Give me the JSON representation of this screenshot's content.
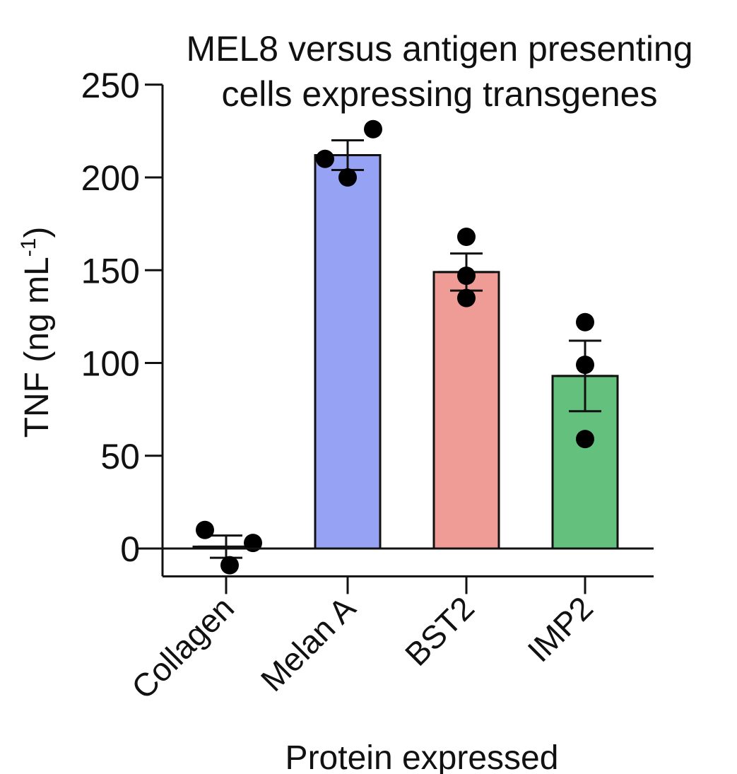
{
  "chart_data": {
    "type": "bar",
    "title": [
      "MEL8 versus antigen presenting",
      "cells expressing transgenes"
    ],
    "xlabel": "Protein expressed",
    "ylabel": "TNF (ng mL",
    "ylabel_sup": "-1",
    "ylabel_close": ")",
    "ylim": [
      -15,
      250
    ],
    "yticks": [
      0,
      50,
      100,
      150,
      200,
      250
    ],
    "ytick_labels": [
      "0",
      "50",
      "100",
      "150",
      "200",
      "250"
    ],
    "categories": [
      "Collagen",
      "Melan A",
      "BST2",
      "IMP2"
    ],
    "values": [
      1,
      212,
      149,
      93
    ],
    "errors": [
      6,
      8,
      10,
      19
    ],
    "points": [
      [
        10,
        3,
        -9
      ],
      [
        200,
        226,
        210
      ],
      [
        168,
        147,
        135
      ],
      [
        122,
        99,
        59
      ]
    ],
    "colors": [
      "#ffffff",
      "#96a2f4",
      "#f09c96",
      "#63c17d"
    ],
    "grid": false,
    "legend": "none"
  }
}
